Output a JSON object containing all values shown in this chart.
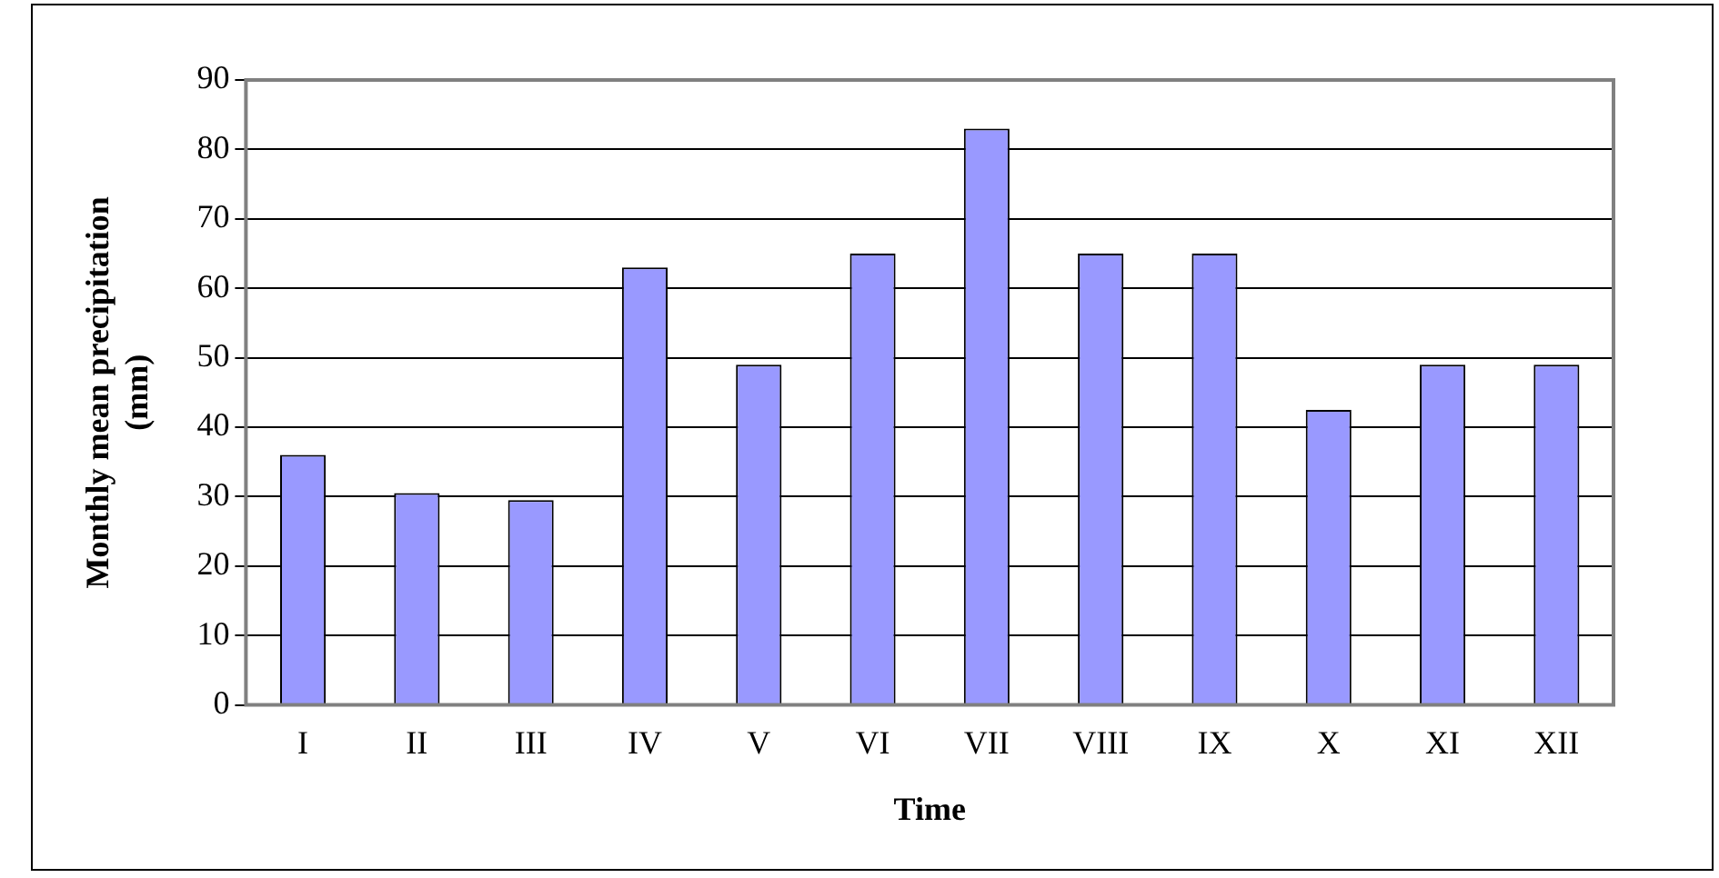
{
  "chart_data": {
    "type": "bar",
    "xlabel": "Time",
    "ylabel": "Monthly mean precipitation (mm)",
    "categories": [
      "I",
      "II",
      "III",
      "IV",
      "V",
      "VI",
      "VII",
      "VIII",
      "IX",
      "X",
      "XI",
      "XII"
    ],
    "values": [
      36,
      30.5,
      29.5,
      63,
      49,
      65,
      83,
      65,
      65,
      42.5,
      49,
      49
    ],
    "color": "#9999ff",
    "ylim": [
      0,
      90
    ],
    "yticks": [
      0,
      10,
      20,
      30,
      40,
      50,
      60,
      70,
      80,
      90
    ],
    "grid": "y",
    "legend": false
  }
}
